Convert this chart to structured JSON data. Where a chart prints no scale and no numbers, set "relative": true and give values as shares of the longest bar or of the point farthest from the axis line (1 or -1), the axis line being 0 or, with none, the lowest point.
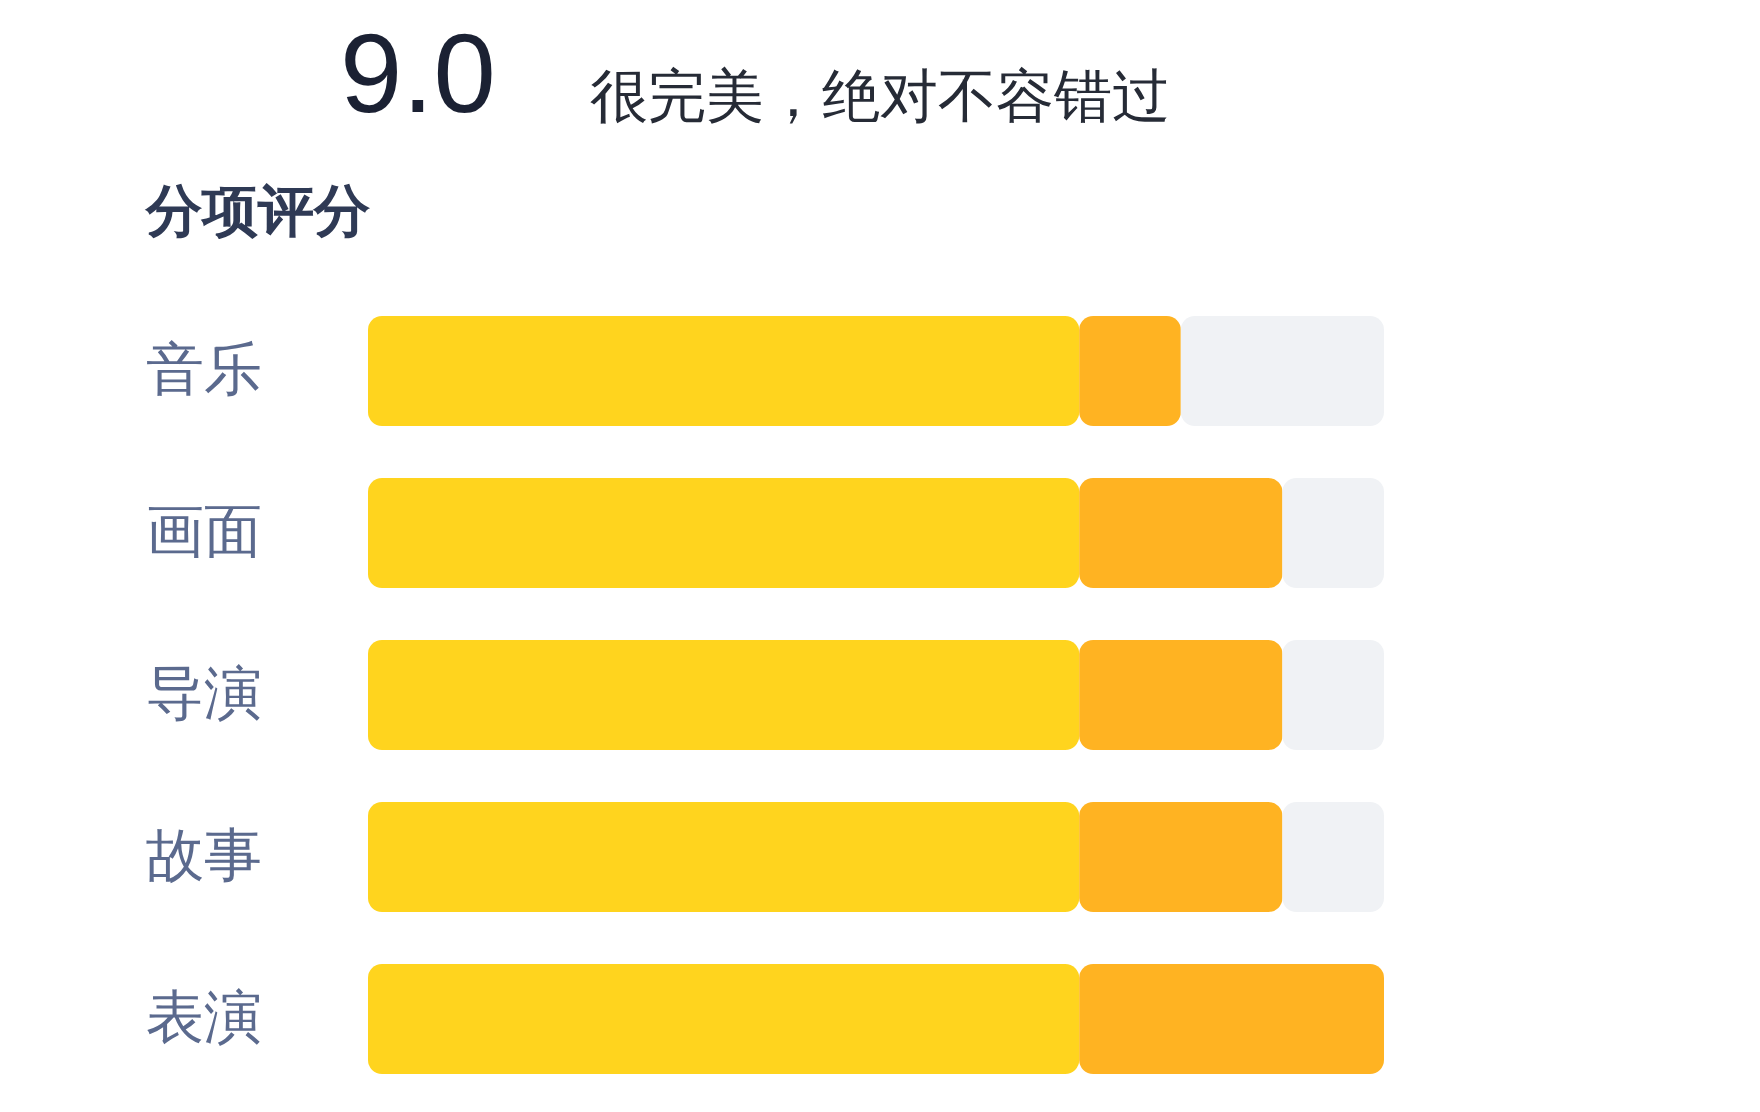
{
  "chart_data": {
    "type": "bar",
    "orientation": "horizontal",
    "stacked": true,
    "relative": true,
    "title": "分项评分",
    "annotations": [
      "9.0",
      "很完美，绝对不容错过"
    ],
    "categories": [
      "音乐",
      "画面",
      "导演",
      "故事",
      "表演"
    ],
    "series": [
      {
        "color": "#ffd41e",
        "values": [
          0.7,
          0.7,
          0.7,
          0.7,
          0.7
        ]
      },
      {
        "color": "#ffb322",
        "values": [
          0.1,
          0.2,
          0.2,
          0.2,
          0.3
        ]
      },
      {
        "color": "#f0f2f5",
        "values": [
          0.2,
          0.1,
          0.1,
          0.1,
          0
        ]
      }
    ]
  }
}
